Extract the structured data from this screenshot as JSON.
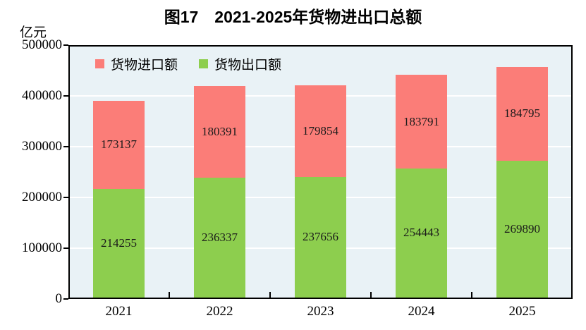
{
  "title": "图17　2021-2025年货物进出口总额",
  "unit_label": "亿元",
  "legend": [
    {
      "label": "货物进口额",
      "color": "#fb7d78"
    },
    {
      "label": "货物出口额",
      "color": "#8dce4e"
    }
  ],
  "colors": {
    "import_red": "#fb7d78",
    "export_green": "#8dce4e",
    "plot_background": "#e9f2f6",
    "gridline": "#ffffff",
    "axis": "#000000"
  },
  "chart_data": {
    "type": "bar",
    "stacked": true,
    "title": "图17　2021-2025年货物进出口总额",
    "ylabel": "亿元",
    "categories": [
      "2021",
      "2022",
      "2023",
      "2024",
      "2025"
    ],
    "series": [
      {
        "name": "货物出口额",
        "color": "#8dce4e",
        "values": [
          214255,
          236337,
          237656,
          254443,
          269890
        ]
      },
      {
        "name": "货物进口额",
        "color": "#fb7d78",
        "values": [
          173137,
          180391,
          179854,
          183791,
          184795
        ]
      }
    ],
    "ylim": [
      0,
      500000
    ],
    "ytick_step": 100000,
    "ytick_labels": [
      "0",
      "100000",
      "200000",
      "300000",
      "400000",
      "500000"
    ],
    "grid": true,
    "gridline_color": "#ffffff",
    "legend_position": "top-left-inside",
    "value_labels": "inside-center"
  }
}
